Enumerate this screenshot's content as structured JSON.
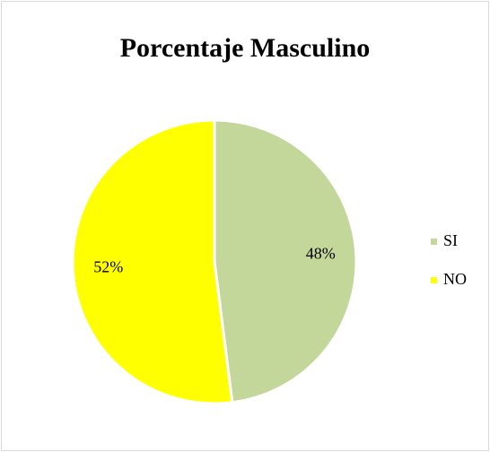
{
  "chart_data": {
    "type": "pie",
    "title": "Porcentaje Masculino",
    "categories": [
      "SI",
      "NO"
    ],
    "values": [
      48,
      52
    ],
    "value_labels": [
      "48%",
      "52%"
    ],
    "colors": [
      "#c4d79b",
      "#ffff00"
    ],
    "legend": "right"
  }
}
